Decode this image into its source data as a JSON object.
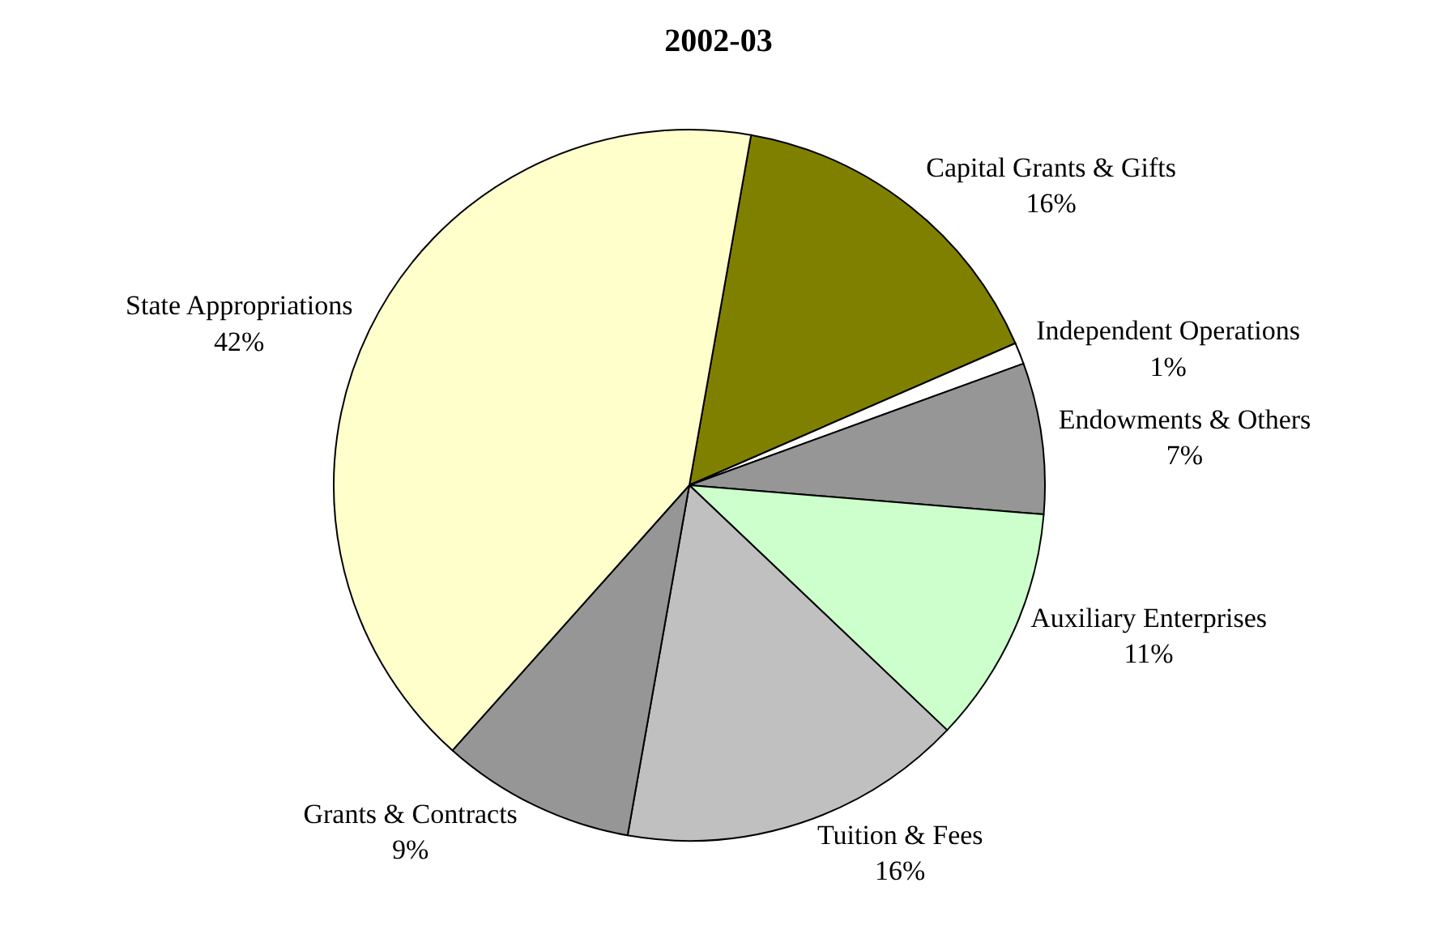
{
  "chart_data": {
    "type": "pie",
    "title": "2002-03",
    "categories": [
      "Capital Grants & Gifts",
      "Independent Operations",
      "Endowments & Others",
      "Auxiliary Enterprises",
      "Tuition & Fees",
      "Grants & Contracts",
      "State Appropriations"
    ],
    "values": [
      16,
      1,
      7,
      11,
      16,
      9,
      42
    ],
    "value_labels": [
      "16%",
      "1%",
      "7%",
      "11%",
      "16%",
      "9%",
      "42%"
    ],
    "colors": [
      "#808000",
      "#ffffff",
      "#969696",
      "#ccffcc",
      "#c0c0c0",
      "#969696",
      "#ffffcc"
    ],
    "legend": false
  }
}
